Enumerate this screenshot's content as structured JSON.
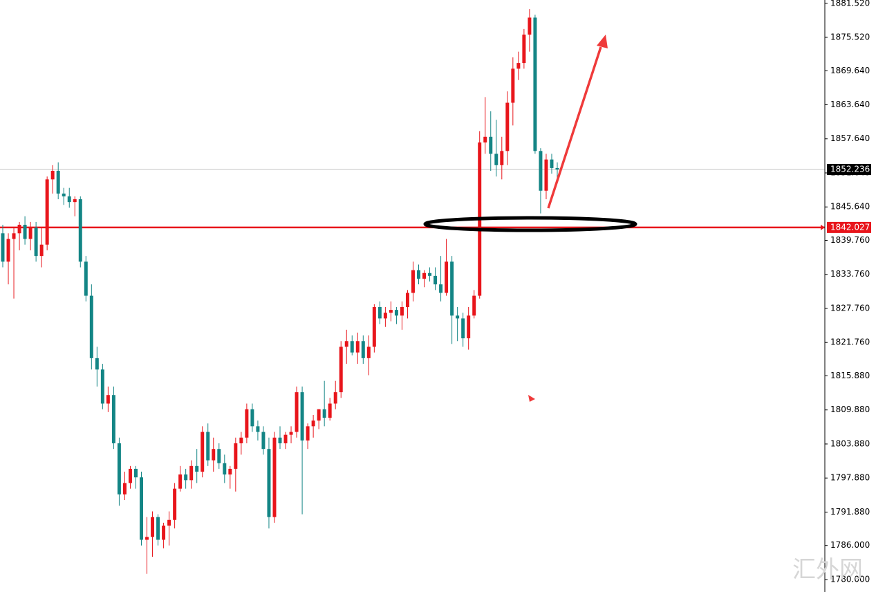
{
  "chart_data": {
    "type": "candlestick",
    "up_color": "#e8151b",
    "down_color": "#138585",
    "ylim": [
      1777.8,
      1882.1
    ],
    "yticks": [
      {
        "value": 1780,
        "label": "1780.000"
      },
      {
        "value": 1786,
        "label": "1786.000"
      },
      {
        "value": 1791.88,
        "label": "1791.880"
      },
      {
        "value": 1797.88,
        "label": "1797.880"
      },
      {
        "value": 1803.88,
        "label": "1803.880"
      },
      {
        "value": 1809.88,
        "label": "1809.880"
      },
      {
        "value": 1815.88,
        "label": "1815.880"
      },
      {
        "value": 1821.76,
        "label": "1821.760"
      },
      {
        "value": 1827.76,
        "label": "1827.760"
      },
      {
        "value": 1833.76,
        "label": "1833.760"
      },
      {
        "value": 1839.76,
        "label": "1839.760"
      },
      {
        "value": 1845.64,
        "label": "1845.640"
      },
      {
        "value": 1851.64,
        "label": "1851.640"
      },
      {
        "value": 1857.64,
        "label": "1857.640"
      },
      {
        "value": 1863.64,
        "label": "1863.640"
      },
      {
        "value": 1869.64,
        "label": "1869.640"
      },
      {
        "value": 1875.52,
        "label": "1875.520"
      },
      {
        "value": 1881.52,
        "label": "1881.520"
      }
    ],
    "price_lines": [
      {
        "value": 1852.236,
        "color": "#c8c8c8"
      },
      {
        "value": 1842.027,
        "color": "#e8151b"
      }
    ],
    "open": [
      1841,
      1836,
      1840,
      1841,
      1842.5,
      1840,
      1842,
      1837,
      1839,
      1850.5,
      1852,
      1848,
      1847.5,
      1846.5,
      1847,
      1836,
      1830,
      1819,
      1817,
      1811,
      1812.5,
      1804,
      1795,
      1797,
      1799.5,
      1798,
      1787,
      1787.5,
      1791,
      1787,
      1789.5,
      1790.5,
      1796,
      1798.5,
      1797.5,
      1800,
      1799,
      1806,
      1801,
      1803,
      1800.5,
      1798.5,
      1799.5,
      1804,
      1805,
      1810,
      1807,
      1806,
      1803,
      1791,
      1805,
      1804,
      1805.5,
      1806,
      1813,
      1804.5,
      1807,
      1808,
      1810,
      1808.5,
      1811,
      1813,
      1821,
      1822,
      1820,
      1822,
      1819,
      1821,
      1828,
      1826,
      1827,
      1827.5,
      1826.5,
      1828,
      1830.5,
      1834.5,
      1833,
      1834,
      1833.5,
      1832,
      1830.5,
      1836,
      1826.5,
      1826,
      1822.5,
      1826.5,
      1830,
      1857,
      1858,
      1855,
      1853,
      1855.5,
      1864,
      1870,
      1871,
      1876,
      1879,
      1855.5,
      1848.5,
      1854,
      1852.5
    ],
    "high": [
      1842.5,
      1841,
      1842,
      1843,
      1844,
      1843,
      1843,
      1842,
      1851,
      1853,
      1853.5,
      1849,
      1849,
      1847.5,
      1847.5,
      1837,
      1832,
      1821,
      1818,
      1814,
      1814,
      1805,
      1799,
      1800,
      1800,
      1799,
      1791,
      1792,
      1791.5,
      1790,
      1792,
      1797,
      1800,
      1799.5,
      1801,
      1803,
      1807,
      1807.5,
      1805,
      1804,
      1802,
      1800,
      1805,
      1806,
      1811,
      1811,
      1808,
      1807,
      1805,
      1806,
      1807,
      1806,
      1807,
      1814,
      1814,
      1807.5,
      1809,
      1810,
      1815,
      1812,
      1815,
      1822,
      1824,
      1823,
      1823.5,
      1823,
      1823,
      1828.5,
      1829,
      1828,
      1829,
      1828,
      1829,
      1831,
      1836,
      1835.5,
      1834.5,
      1835,
      1835,
      1837,
      1840,
      1837,
      1828,
      1827,
      1828,
      1831,
      1859,
      1865,
      1862.5,
      1861,
      1858,
      1866,
      1872,
      1873,
      1877,
      1880.5,
      1879.5,
      1856,
      1855,
      1855,
      1853.5
    ],
    "low": [
      1835,
      1832,
      1829.5,
      1838,
      1839,
      1838,
      1836,
      1835,
      1838,
      1848,
      1847,
      1846,
      1845.5,
      1844,
      1835,
      1829,
      1817,
      1814,
      1810,
      1809.5,
      1803,
      1793,
      1794,
      1796,
      1796,
      1786,
      1781,
      1784,
      1786,
      1785.5,
      1786,
      1789,
      1795.5,
      1796,
      1796,
      1797,
      1798,
      1800,
      1799,
      1799.5,
      1797,
      1796,
      1795.5,
      1802,
      1804,
      1806,
      1804.5,
      1802,
      1789,
      1790,
      1803,
      1803,
      1804,
      1805,
      1791.5,
      1803,
      1805,
      1806.5,
      1807,
      1808,
      1810,
      1812,
      1818,
      1819.5,
      1818,
      1818,
      1816,
      1820,
      1825,
      1824.5,
      1825.5,
      1825,
      1824,
      1826,
      1829,
      1832,
      1831.5,
      1832.5,
      1831,
      1829,
      1830,
      1821.5,
      1822,
      1821,
      1820.5,
      1826,
      1829.5,
      1855,
      1852,
      1851,
      1850.5,
      1853,
      1860,
      1868,
      1870,
      1873,
      1855,
      1844.5,
      1847,
      1851.5,
      1850.5
    ],
    "close": [
      1836,
      1840,
      1841,
      1842.5,
      1840,
      1842,
      1837,
      1839,
      1850.5,
      1852,
      1848,
      1847.5,
      1846.5,
      1847,
      1836,
      1830,
      1819,
      1817,
      1811,
      1812.5,
      1804,
      1795,
      1797,
      1799.5,
      1798,
      1787,
      1787.5,
      1791,
      1787,
      1789.5,
      1790.5,
      1796,
      1798.5,
      1797.5,
      1800,
      1799,
      1806,
      1801,
      1803,
      1800.5,
      1798.5,
      1799.5,
      1804,
      1805,
      1810,
      1807,
      1806,
      1803,
      1791,
      1805,
      1804,
      1805.5,
      1806,
      1813,
      1804.5,
      1807,
      1808,
      1810,
      1808.5,
      1811,
      1813,
      1821,
      1822,
      1820,
      1822,
      1819,
      1821,
      1828,
      1826,
      1827,
      1827.5,
      1826.5,
      1828,
      1830.5,
      1834.5,
      1833,
      1834,
      1833.5,
      1832,
      1830.5,
      1836,
      1826.5,
      1826,
      1822.5,
      1826.5,
      1830,
      1857,
      1858,
      1855,
      1853,
      1855.5,
      1864,
      1870,
      1871,
      1876,
      1879,
      1855.5,
      1848.5,
      1854,
      1852.5,
      1852.236
    ],
    "watermark": "汇外网"
  }
}
